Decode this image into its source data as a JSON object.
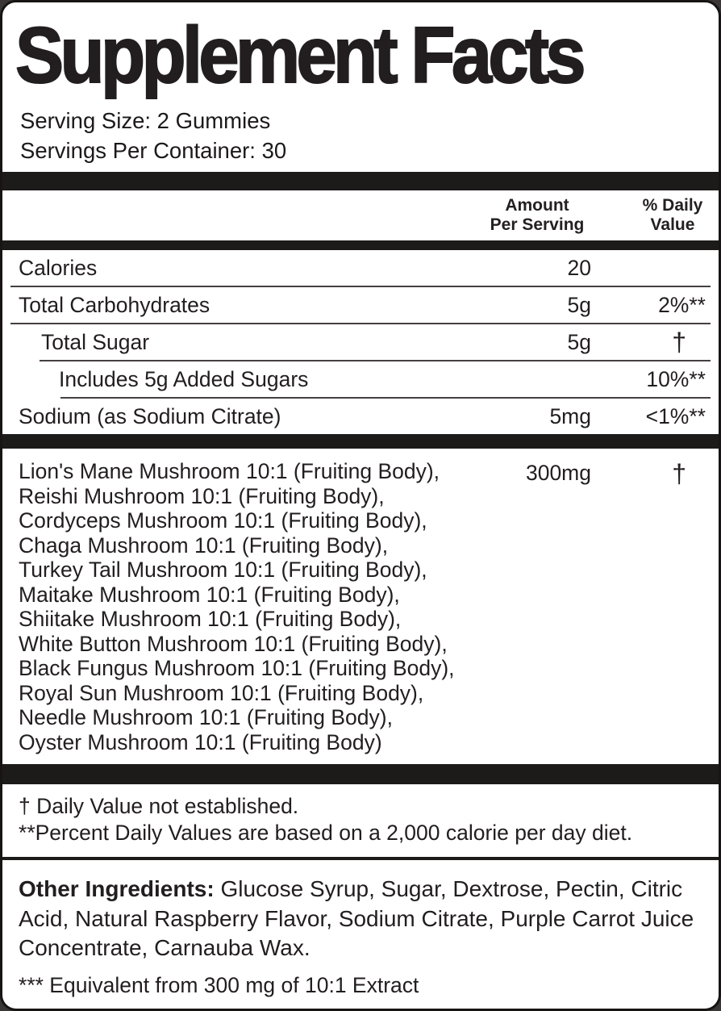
{
  "header": {
    "title": "Supplement Facts",
    "serving_size": "Serving Size: 2 Gummies",
    "servings_per_container": "Servings Per Container: 30"
  },
  "table": {
    "columns": {
      "amount_line1": "Amount",
      "amount_line2": "Per Serving",
      "dv_line1": "% Daily",
      "dv_line2": "Value"
    },
    "rows": [
      {
        "name": "Calories",
        "amount": "20",
        "dv": ""
      },
      {
        "name": "Total Carbohydrates",
        "amount": "5g",
        "dv": "2%**"
      },
      {
        "name": "Total Sugar",
        "amount": "5g",
        "dv": "†"
      },
      {
        "name": "Includes 5g Added Sugars",
        "amount": "",
        "dv": "10%**"
      },
      {
        "name": "Sodium (as Sodium Citrate)",
        "amount": "5mg",
        "dv": "<1%**"
      }
    ]
  },
  "blend": {
    "amount": "300mg",
    "dv": "†",
    "lines": [
      "Lion's Mane Mushroom 10:1 (Fruiting Body),",
      "Reishi Mushroom 10:1 (Fruiting Body),",
      "Cordyceps Mushroom 10:1 (Fruiting Body),",
      "Chaga Mushroom 10:1 (Fruiting Body),",
      "Turkey Tail Mushroom 10:1 (Fruiting Body),",
      "Maitake Mushroom 10:1 (Fruiting Body),",
      "Shiitake Mushroom 10:1 (Fruiting Body),",
      "White Button Mushroom 10:1 (Fruiting Body),",
      "Black Fungus Mushroom 10:1 (Fruiting Body),",
      "Royal Sun Mushroom 10:1 (Fruiting Body),",
      "Needle Mushroom 10:1 (Fruiting Body),",
      "Oyster Mushroom 10:1 (Fruiting Body)"
    ]
  },
  "footnotes": {
    "dagger_note": "† Daily Value not established.",
    "percent_note": "**Percent Daily Values are based on a 2,000 calorie per day diet."
  },
  "other_ingredients": {
    "label": "Other Ingredients:",
    "text": " Glucose Syrup, Sugar, Dextrose, Pectin, Citric Acid, Natural Raspberry Flavor, Sodium Citrate, Purple Carrot Juice Concentrate, Carnauba Wax."
  },
  "equivalent_note": "*** Equivalent from 300 mg of 10:1 Extract"
}
